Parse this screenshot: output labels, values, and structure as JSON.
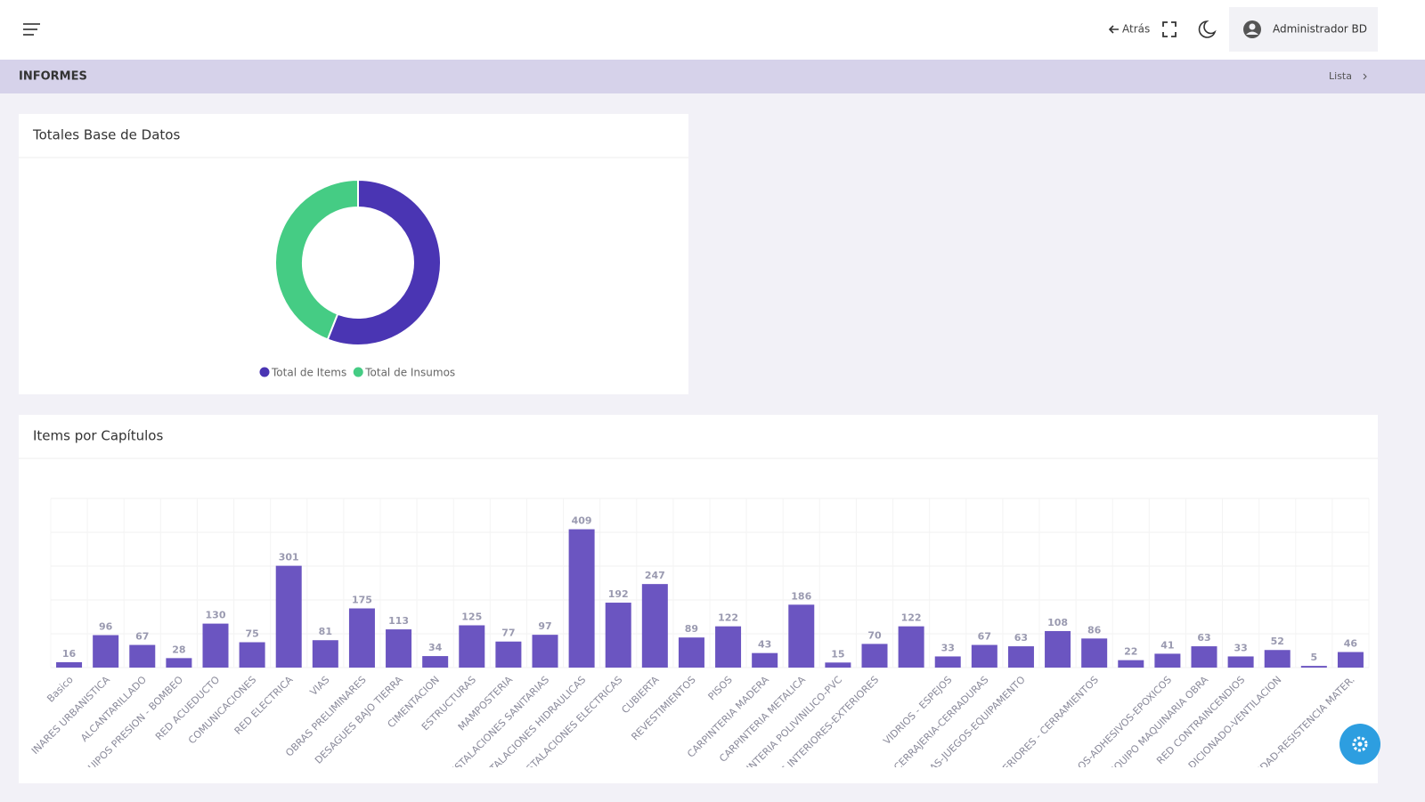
{
  "header": {
    "back": "Atrás",
    "user": "Administrador BD"
  },
  "breadcrumb": {
    "title": "INFORMES",
    "link": "Lista"
  },
  "chart_data": [
    {
      "type": "pie",
      "title": "Totales Base de Datos",
      "donut": true,
      "legend": "bottom",
      "categories": [
        "Total de Items",
        "Total de Insumos"
      ],
      "values": [
        56,
        44
      ],
      "colors": [
        "#4a35b3",
        "#45cc84"
      ]
    },
    {
      "type": "bar",
      "title": "Items por Capítulos",
      "categories": [
        "Basico",
        "INARES URBANISTICA",
        "ALCANTARILLADO",
        "UIPOS PRESION - BOMBEO",
        "RED ACUEDUCTO",
        "COMUNICACIONES",
        "RED ELECTRICA",
        "VIAS",
        "OBRAS PRELIMINARES",
        "DESAGUES BAJO TIERRA",
        "CIMENTACION",
        "ESTRUCTURAS",
        "MAMPOSTERIA",
        "ISTALACIONES SANITARIAS",
        "STALACIONES HIDRAULICAS",
        "STALACIONES ELECTRICAS",
        "CUBIERTA",
        "REVESTIMIENTOS",
        "PISOS",
        "CARPINTERIA MADERA",
        "CARPINTERIA METALICA",
        "INTERIA POLIVINILICO-PVC",
        "S INTERIORES-EXTERIORES",
        null,
        "VIDRIOS - ESPEJOS",
        "CERRAJERIA-CERRADURAS",
        "AS-JUEGOS-EQUIPAMENTO",
        null,
        "ERIORES - CERRAMIENTOS",
        null,
        "OS-ADHESIVOS-EPOXICOS",
        "EQUIPO MAQUINARIA OBRA",
        "RED CONTRAINCENDIOS",
        "DICIONADO-VENTILACION",
        null,
        "IDAD-RESISTENCIA MATER."
      ],
      "values": [
        16,
        96,
        67,
        28,
        130,
        75,
        301,
        81,
        175,
        113,
        34,
        125,
        77,
        97,
        409,
        192,
        247,
        89,
        122,
        43,
        186,
        15,
        70,
        122,
        33,
        67,
        63,
        108,
        86,
        22,
        41,
        63,
        33,
        52,
        5,
        46
      ],
      "color": "#6b55c1",
      "ylim": [
        0,
        500
      ],
      "yticks": [
        0,
        100,
        200,
        300,
        400,
        500
      ],
      "grid": true
    }
  ]
}
